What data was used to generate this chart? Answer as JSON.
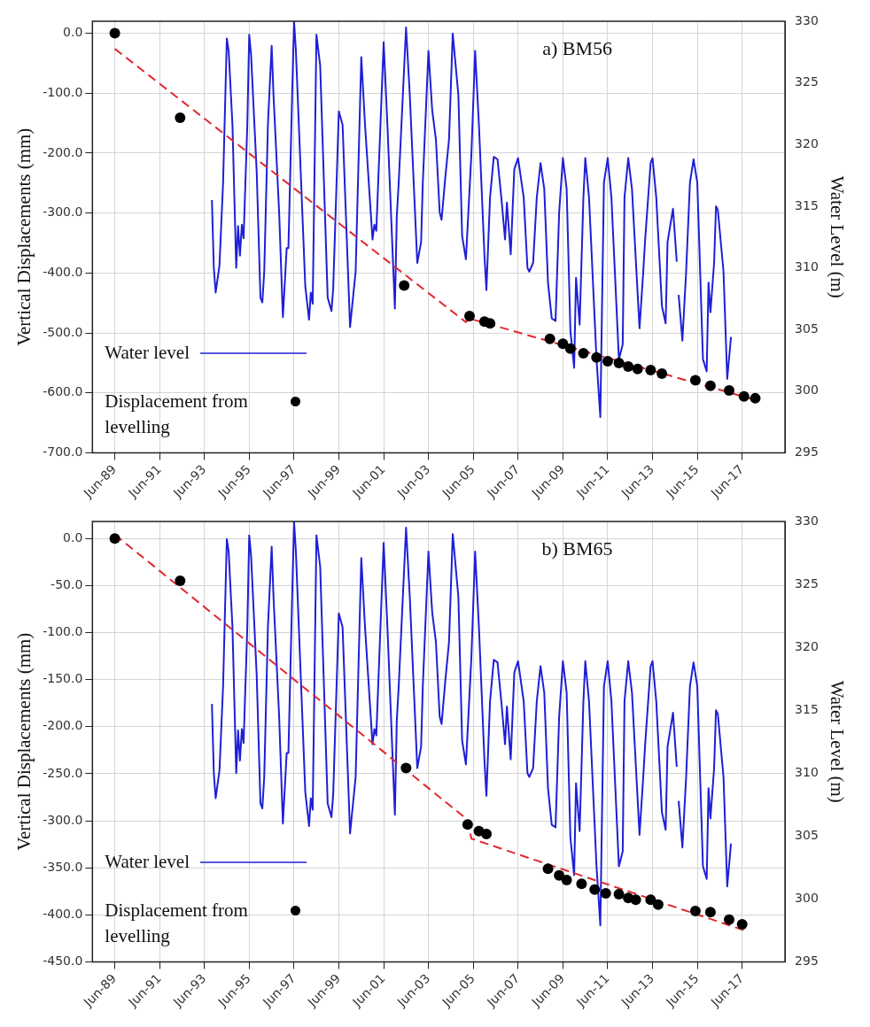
{
  "chart_data": [
    {
      "type": "line",
      "title": "a) BM56",
      "ylabel": "Vertical Displacements (mm)",
      "y2label": "Water Level (m)",
      "xlim": [
        "1988-06",
        "2019-05"
      ],
      "xticks": [
        {
          "value": "1989-06",
          "label": "Jun-89"
        },
        {
          "value": "1991-06",
          "label": "Jun-91"
        },
        {
          "value": "1993-06",
          "label": "Jun-93"
        },
        {
          "value": "1995-06",
          "label": "Jun-95"
        },
        {
          "value": "1997-06",
          "label": "Jun-97"
        },
        {
          "value": "1999-06",
          "label": "Jun-99"
        },
        {
          "value": "2001-06",
          "label": "Jun-01"
        },
        {
          "value": "2003-06",
          "label": "Jun-03"
        },
        {
          "value": "2005-06",
          "label": "Jun-05"
        },
        {
          "value": "2007-06",
          "label": "Jun-07"
        },
        {
          "value": "2009-06",
          "label": "Jun-09"
        },
        {
          "value": "2011-06",
          "label": "Jun-11"
        },
        {
          "value": "2013-06",
          "label": "Jun-13"
        },
        {
          "value": "2015-06",
          "label": "Jun-15"
        },
        {
          "value": "2017-06",
          "label": "Jun-17"
        }
      ],
      "ylim": [
        -700,
        20
      ],
      "yticks": [
        {
          "value": 0,
          "label": "0.0"
        },
        {
          "value": -100,
          "label": "-100.0"
        },
        {
          "value": -200,
          "label": "-200.0"
        },
        {
          "value": -300,
          "label": "-300.0"
        },
        {
          "value": -400,
          "label": "-400.0"
        },
        {
          "value": -500,
          "label": "-500.0"
        },
        {
          "value": -600,
          "label": "-600.0"
        },
        {
          "value": -700,
          "label": "-700.0"
        }
      ],
      "y2lim": [
        295,
        330
      ],
      "y2ticks": [
        295,
        300,
        305,
        310,
        315,
        320,
        325,
        330
      ],
      "grid": true,
      "legend": "bottom left",
      "series": [
        {
          "name": "Water level",
          "type": "line",
          "axis": "y2",
          "color": "#1f1fd6",
          "x": [
            "1993-10",
            "1993-11",
            "1993-12",
            "1994-02",
            "1994-04",
            "1994-06",
            "1994-07",
            "1994-09",
            "1994-11",
            "1994-12",
            "1995-01",
            "1995-02",
            "1995-03",
            "1995-05",
            "1995-06",
            "1995-07",
            "1995-10",
            "1995-12",
            "1996-01",
            "1996-02",
            "1996-04",
            "1996-06",
            "1996-07",
            "1996-10",
            "1996-12",
            "1997-02",
            "1997-03",
            "1997-05",
            "1997-06",
            "1997-07",
            "1997-12",
            "1998-02",
            "1998-03",
            "1998-04",
            "1998-06",
            "1998-08",
            "1998-12",
            "1999-02",
            "1999-03",
            "1999-06",
            "1999-08",
            "1999-12",
            "2000-03",
            "2000-06",
            "2000-08",
            "2000-12",
            "2001-01",
            "2001-02",
            "2001-06",
            "2001-08",
            "2001-12",
            "2002-01",
            "2002-02",
            "2002-06",
            "2002-08",
            "2002-12",
            "2003-02",
            "2003-03",
            "2003-06",
            "2003-08",
            "2003-10",
            "2003-12",
            "2004-01",
            "2004-03",
            "2004-05",
            "2004-07",
            "2004-10",
            "2004-12",
            "2005-02",
            "2005-05",
            "2005-07",
            "2005-09",
            "2005-12",
            "2006-01",
            "2006-03",
            "2006-05",
            "2006-07",
            "2006-09",
            "2006-11",
            "2006-12",
            "2007-02",
            "2007-04",
            "2007-06",
            "2007-09",
            "2007-11",
            "2007-12",
            "2008-02",
            "2008-04",
            "2008-06",
            "2008-08",
            "2008-10",
            "2008-12",
            "2009-02",
            "2009-04",
            "2009-06",
            "2009-08",
            "2009-10",
            "2009-12",
            "2010-01",
            "2010-03",
            "2010-05",
            "2010-06",
            "2010-08",
            "2010-12",
            "2011-02",
            "2011-04",
            "2011-06",
            "2011-08",
            "2011-12",
            "2012-02",
            "2012-03",
            "2012-05",
            "2012-07",
            "2012-11",
            "2013-01",
            "2013-02",
            "2013-05",
            "2013-06",
            "2013-08",
            "2013-11",
            "2014-01",
            "2014-02",
            "2014-05",
            "2014-07-01",
            "2014-07-15",
            "2014-08-01",
            "2014-10",
            "2014-12",
            "2015-02",
            "2015-04",
            "2015-06",
            "2015-09",
            "2015-11",
            "2015-12",
            "2016-01",
            "2016-03",
            "2016-04",
            "2016-05",
            "2016-08",
            "2016-10",
            "2016-12"
          ],
          "values": [
            315.5,
            310.0,
            308.0,
            310.2,
            316.9,
            328.6,
            327.6,
            321.6,
            310.0,
            313.4,
            311.0,
            313.5,
            312.4,
            321.6,
            328.9,
            327.3,
            317.8,
            307.6,
            307.2,
            309.7,
            321.6,
            328.0,
            324.0,
            314.5,
            306.0,
            311.6,
            311.6,
            324.0,
            330.0,
            327.6,
            308.5,
            305.8,
            308.0,
            307.1,
            328.9,
            326.4,
            307.6,
            306.5,
            308.3,
            322.7,
            321.6,
            305.2,
            309.7,
            327.1,
            321.6,
            312.3,
            313.5,
            313.0,
            328.3,
            321.6,
            306.7,
            314.2,
            316.9,
            329.5,
            324.0,
            310.4,
            312.1,
            316.9,
            327.6,
            322.8,
            320.4,
            314.5,
            313.9,
            317.3,
            320.4,
            329.0,
            324.0,
            312.6,
            310.7,
            319.2,
            327.6,
            321.6,
            310.9,
            308.2,
            315.7,
            319.0,
            318.8,
            315.7,
            312.3,
            315.3,
            311.1,
            318.0,
            318.9,
            315.7,
            310.0,
            309.7,
            310.4,
            315.7,
            318.5,
            316.4,
            308.8,
            305.9,
            305.7,
            314.5,
            318.9,
            316.4,
            304.9,
            301.9,
            309.2,
            305.4,
            315.7,
            318.9,
            315.7,
            302.6,
            297.9,
            316.9,
            318.9,
            315.7,
            302.6,
            303.8,
            315.7,
            318.9,
            316.4,
            305.1,
            309.7,
            312.3,
            318.5,
            318.9,
            315.7,
            306.9,
            305.5,
            312.1,
            314.8,
            310.5,
            null,
            307.8,
            304.1,
            309.7,
            316.9,
            318.8,
            316.9,
            302.6,
            301.6,
            308.8,
            306.4,
            310.4,
            315.0,
            314.7,
            309.7,
            301.0,
            304.4
          ]
        },
        {
          "name": "Displacement from levelling",
          "type": "scatter",
          "marker": "circle",
          "color": "#000000",
          "x": [
            "1989-06",
            "1992-05",
            "2002-05",
            "2005-04",
            "2005-12",
            "2006-03",
            "2008-11",
            "2009-06",
            "2009-10",
            "2010-05",
            "2010-12",
            "2011-06",
            "2011-12",
            "2012-05",
            "2012-10",
            "2013-05",
            "2013-11",
            "2015-05",
            "2016-01",
            "2016-11",
            "2017-07",
            "2018-01"
          ],
          "values": [
            0,
            -141,
            -421,
            -472,
            -481,
            -484,
            -510,
            -518,
            -526,
            -534,
            -541,
            -547,
            -550,
            -556,
            -560,
            -562,
            -568,
            -579,
            -588,
            -596,
            -606,
            -609
          ]
        },
        {
          "type": "line",
          "line_style": "dashed",
          "color": "#e0282e",
          "x": [
            "1989-06",
            "2005-02",
            "2005-04",
            "2017-11"
          ],
          "values": [
            -26,
            -482,
            -476,
            -610
          ]
        }
      ]
    },
    {
      "type": "line",
      "title": "b) BM65",
      "ylabel": "Vertical Displacements (mm)",
      "y2label": "Water Level (m)",
      "xlim": [
        "1988-06",
        "2019-05"
      ],
      "xticks": [
        {
          "value": "1989-06",
          "label": "Jun-89"
        },
        {
          "value": "1991-06",
          "label": "Jun-91"
        },
        {
          "value": "1993-06",
          "label": "Jun-93"
        },
        {
          "value": "1995-06",
          "label": "Jun-95"
        },
        {
          "value": "1997-06",
          "label": "Jun-97"
        },
        {
          "value": "1999-06",
          "label": "Jun-99"
        },
        {
          "value": "2001-06",
          "label": "Jun-01"
        },
        {
          "value": "2003-06",
          "label": "Jun-03"
        },
        {
          "value": "2005-06",
          "label": "Jun-05"
        },
        {
          "value": "2007-06",
          "label": "Jun-07"
        },
        {
          "value": "2009-06",
          "label": "Jun-09"
        },
        {
          "value": "2011-06",
          "label": "Jun-11"
        },
        {
          "value": "2013-06",
          "label": "Jun-13"
        },
        {
          "value": "2015-06",
          "label": "Jun-15"
        },
        {
          "value": "2017-06",
          "label": "Jun-17"
        }
      ],
      "ylim": [
        -450,
        18
      ],
      "yticks": [
        {
          "value": 0,
          "label": "0.0"
        },
        {
          "value": -50,
          "label": "-50.0"
        },
        {
          "value": -100,
          "label": "-100.0"
        },
        {
          "value": -150,
          "label": "-150.0"
        },
        {
          "value": -200,
          "label": "-200.0"
        },
        {
          "value": -250,
          "label": "-250.0"
        },
        {
          "value": -300,
          "label": "-300.0"
        },
        {
          "value": -350,
          "label": "-350.0"
        },
        {
          "value": -400,
          "label": "-400.0"
        },
        {
          "value": -450,
          "label": "-450.0"
        }
      ],
      "y2lim": [
        295,
        330
      ],
      "y2ticks": [
        295,
        300,
        305,
        310,
        315,
        320,
        325,
        330
      ],
      "grid": true,
      "legend": "bottom left",
      "series": [
        {
          "name": "Water level",
          "type": "line",
          "axis": "y2",
          "color": "#1f1fd6",
          "x": [
            "1993-10",
            "1993-11",
            "1993-12",
            "1994-02",
            "1994-04",
            "1994-06",
            "1994-07",
            "1994-09",
            "1994-11",
            "1994-12",
            "1995-01",
            "1995-02",
            "1995-03",
            "1995-05",
            "1995-06",
            "1995-07",
            "1995-10",
            "1995-12",
            "1996-01",
            "1996-02",
            "1996-04",
            "1996-06",
            "1996-07",
            "1996-10",
            "1996-12",
            "1997-02",
            "1997-03",
            "1997-05",
            "1997-06",
            "1997-07",
            "1997-12",
            "1998-02",
            "1998-03",
            "1998-04",
            "1998-06",
            "1998-08",
            "1998-12",
            "1999-02",
            "1999-03",
            "1999-06",
            "1999-08",
            "1999-12",
            "2000-03",
            "2000-06",
            "2000-08",
            "2000-12",
            "2001-01",
            "2001-02",
            "2001-06",
            "2001-08",
            "2001-12",
            "2002-01",
            "2002-02",
            "2002-06",
            "2002-08",
            "2002-12",
            "2003-02",
            "2003-03",
            "2003-06",
            "2003-08",
            "2003-10",
            "2003-12",
            "2004-01",
            "2004-03",
            "2004-05",
            "2004-07",
            "2004-10",
            "2004-12",
            "2005-02",
            "2005-05",
            "2005-07",
            "2005-09",
            "2005-12",
            "2006-01",
            "2006-03",
            "2006-05",
            "2006-07",
            "2006-09",
            "2006-11",
            "2006-12",
            "2007-02",
            "2007-04",
            "2007-06",
            "2007-09",
            "2007-11",
            "2007-12",
            "2008-02",
            "2008-04",
            "2008-06",
            "2008-08",
            "2008-10",
            "2008-12",
            "2009-02",
            "2009-04",
            "2009-06",
            "2009-08",
            "2009-10",
            "2009-12",
            "2010-01",
            "2010-03",
            "2010-05",
            "2010-06",
            "2010-08",
            "2010-12",
            "2011-02",
            "2011-04",
            "2011-06",
            "2011-08",
            "2011-12",
            "2012-02",
            "2012-03",
            "2012-05",
            "2012-07",
            "2012-11",
            "2013-01",
            "2013-02",
            "2013-05",
            "2013-06",
            "2013-08",
            "2013-11",
            "2014-01",
            "2014-02",
            "2014-05",
            "2014-07-01",
            "2014-07-15",
            "2014-08-01",
            "2014-10",
            "2014-12",
            "2015-02",
            "2015-04",
            "2015-06",
            "2015-09",
            "2015-11",
            "2015-12",
            "2016-01",
            "2016-03",
            "2016-04",
            "2016-05",
            "2016-08",
            "2016-10",
            "2016-12"
          ],
          "values": [
            315.5,
            310.0,
            308.0,
            310.2,
            316.9,
            328.6,
            327.6,
            321.6,
            310.0,
            313.4,
            311.0,
            313.5,
            312.4,
            321.6,
            328.9,
            327.3,
            317.8,
            307.6,
            307.2,
            309.7,
            321.6,
            328.0,
            324.0,
            314.5,
            306.0,
            311.6,
            311.6,
            324.0,
            330.0,
            327.6,
            308.5,
            305.8,
            308.0,
            307.1,
            328.9,
            326.4,
            307.6,
            306.5,
            308.3,
            322.7,
            321.6,
            305.2,
            309.7,
            327.1,
            321.6,
            312.3,
            313.5,
            313.0,
            328.3,
            321.6,
            306.7,
            314.2,
            316.9,
            329.5,
            324.0,
            310.4,
            312.1,
            316.9,
            327.6,
            322.8,
            320.4,
            314.5,
            313.9,
            317.3,
            320.4,
            329.0,
            324.0,
            312.6,
            310.7,
            319.2,
            327.6,
            321.6,
            310.9,
            308.2,
            315.7,
            319.0,
            318.8,
            315.7,
            312.3,
            315.3,
            311.1,
            318.0,
            318.9,
            315.7,
            310.0,
            309.7,
            310.4,
            315.7,
            318.5,
            316.4,
            308.8,
            305.9,
            305.7,
            314.5,
            318.9,
            316.4,
            304.9,
            301.9,
            309.2,
            305.4,
            315.7,
            318.9,
            315.7,
            302.6,
            297.9,
            316.9,
            318.9,
            315.7,
            302.6,
            303.8,
            315.7,
            318.9,
            316.4,
            305.1,
            309.7,
            312.3,
            318.5,
            318.9,
            315.7,
            306.9,
            305.5,
            312.1,
            314.8,
            310.5,
            null,
            307.8,
            304.1,
            309.7,
            316.9,
            318.8,
            316.9,
            302.6,
            301.6,
            308.8,
            306.4,
            310.4,
            315.0,
            314.7,
            309.7,
            301.0,
            304.4
          ]
        },
        {
          "name": "Displacement from levelling",
          "type": "scatter",
          "marker": "circle",
          "color": "#000000",
          "x": [
            "1989-06",
            "1992-05",
            "2002-06",
            "2005-03",
            "2005-09",
            "2006-01",
            "2008-10",
            "2009-04",
            "2009-08",
            "2010-04",
            "2010-11",
            "2011-05",
            "2011-12",
            "2012-05",
            "2012-09",
            "2013-05",
            "2013-09",
            "2015-05",
            "2016-01",
            "2016-11",
            "2017-06"
          ],
          "values": [
            0,
            -45,
            -244,
            -304,
            -311,
            -314,
            -351,
            -358,
            -363,
            -367,
            -373,
            -377,
            -378,
            -382,
            -384,
            -384,
            -389,
            -396,
            -397,
            -405,
            -410
          ]
        },
        {
          "type": "line",
          "line_style": "dashed",
          "color": "#e0282e",
          "x": [
            "1989-06",
            "2005-03",
            "2005-05",
            "2017-08"
          ],
          "values": [
            4,
            -299,
            -319,
            -417
          ]
        }
      ]
    }
  ]
}
